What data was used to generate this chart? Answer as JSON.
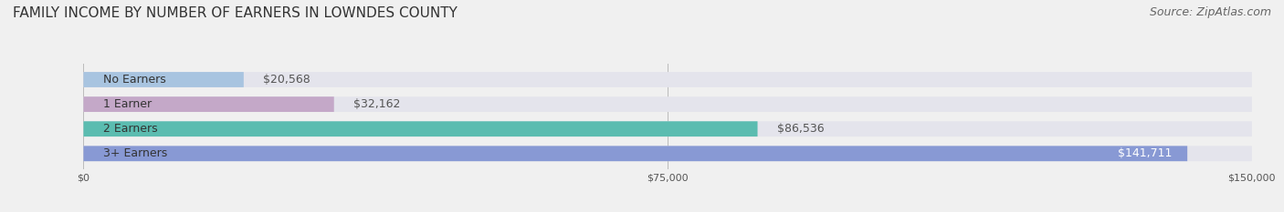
{
  "title": "FAMILY INCOME BY NUMBER OF EARNERS IN LOWNDES COUNTY",
  "source": "Source: ZipAtlas.com",
  "categories": [
    "No Earners",
    "1 Earner",
    "2 Earners",
    "3+ Earners"
  ],
  "values": [
    20568,
    32162,
    86536,
    141711
  ],
  "bar_colors": [
    "#a8c4e0",
    "#c4a8c8",
    "#5bbcb0",
    "#8899d4"
  ],
  "label_colors": [
    "#333333",
    "#333333",
    "#333333",
    "#ffffff"
  ],
  "value_labels": [
    "$20,568",
    "$32,162",
    "$86,536",
    "$141,711"
  ],
  "xlim": [
    0,
    150000
  ],
  "xticks": [
    0,
    75000,
    150000
  ],
  "xtick_labels": [
    "$0",
    "$75,000",
    "$150,000"
  ],
  "background_color": "#f0f0f0",
  "bar_background_color": "#e4e4ec",
  "title_fontsize": 11,
  "source_fontsize": 9,
  "label_fontsize": 9,
  "value_fontsize": 9
}
